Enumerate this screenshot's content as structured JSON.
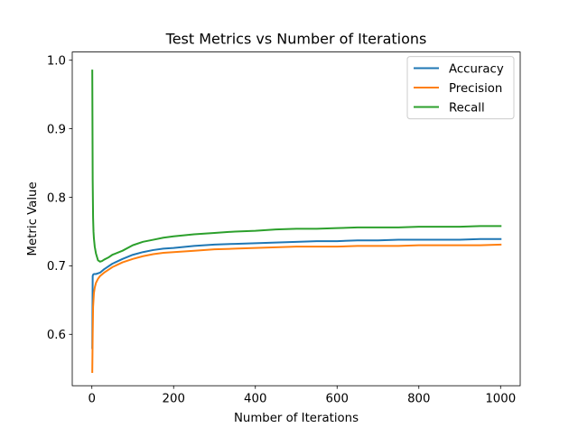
{
  "chart_data": {
    "type": "line",
    "title": "Test Metrics vs Number of Iterations",
    "xlabel": "Number of Iterations",
    "ylabel": "Metric Value",
    "xlim": [
      -48,
      1048
    ],
    "ylim": [
      0.525,
      1.012
    ],
    "xticks": [
      0,
      200,
      400,
      600,
      800,
      1000
    ],
    "xtick_labels": [
      "0",
      "200",
      "400",
      "600",
      "800",
      "1000"
    ],
    "yticks": [
      0.6,
      0.7,
      0.8,
      0.9,
      1.0
    ],
    "ytick_labels": [
      "0.6",
      "0.7",
      "0.8",
      "0.9",
      "1.0"
    ],
    "grid": false,
    "legend_position": "top-right",
    "series": [
      {
        "name": "Accuracy",
        "color": "#1f77b4",
        "x": [
          1,
          2,
          3,
          5,
          10,
          20,
          30,
          50,
          75,
          100,
          125,
          150,
          175,
          200,
          250,
          300,
          350,
          400,
          450,
          500,
          550,
          600,
          650,
          700,
          750,
          800,
          850,
          900,
          950,
          1000
        ],
        "y": [
          0.58,
          0.685,
          0.687,
          0.688,
          0.688,
          0.69,
          0.695,
          0.703,
          0.71,
          0.716,
          0.72,
          0.723,
          0.725,
          0.726,
          0.729,
          0.731,
          0.732,
          0.733,
          0.734,
          0.735,
          0.736,
          0.736,
          0.737,
          0.737,
          0.738,
          0.738,
          0.738,
          0.738,
          0.739,
          0.739
        ]
      },
      {
        "name": "Precision",
        "color": "#ff7f0e",
        "x": [
          1,
          2,
          3,
          5,
          7,
          10,
          15,
          20,
          30,
          50,
          75,
          100,
          125,
          150,
          175,
          200,
          250,
          300,
          350,
          400,
          450,
          500,
          550,
          600,
          650,
          700,
          750,
          800,
          850,
          900,
          950,
          1000
        ],
        "y": [
          0.545,
          0.6,
          0.64,
          0.66,
          0.668,
          0.675,
          0.681,
          0.685,
          0.69,
          0.698,
          0.705,
          0.71,
          0.714,
          0.717,
          0.719,
          0.72,
          0.722,
          0.724,
          0.725,
          0.726,
          0.727,
          0.728,
          0.728,
          0.728,
          0.729,
          0.729,
          0.729,
          0.73,
          0.73,
          0.73,
          0.73,
          0.731
        ]
      },
      {
        "name": "Recall",
        "color": "#2ca02c",
        "x": [
          1,
          2,
          3,
          4,
          5,
          7,
          10,
          15,
          20,
          25,
          30,
          40,
          50,
          75,
          100,
          125,
          150,
          175,
          200,
          250,
          300,
          350,
          400,
          450,
          500,
          550,
          600,
          650,
          700,
          750,
          800,
          850,
          900,
          950,
          1000
        ],
        "y": [
          0.985,
          0.825,
          0.77,
          0.75,
          0.74,
          0.728,
          0.718,
          0.708,
          0.706,
          0.707,
          0.709,
          0.712,
          0.716,
          0.722,
          0.73,
          0.735,
          0.738,
          0.741,
          0.743,
          0.746,
          0.748,
          0.75,
          0.751,
          0.753,
          0.754,
          0.754,
          0.755,
          0.756,
          0.756,
          0.756,
          0.757,
          0.757,
          0.757,
          0.758,
          0.758
        ]
      }
    ]
  }
}
